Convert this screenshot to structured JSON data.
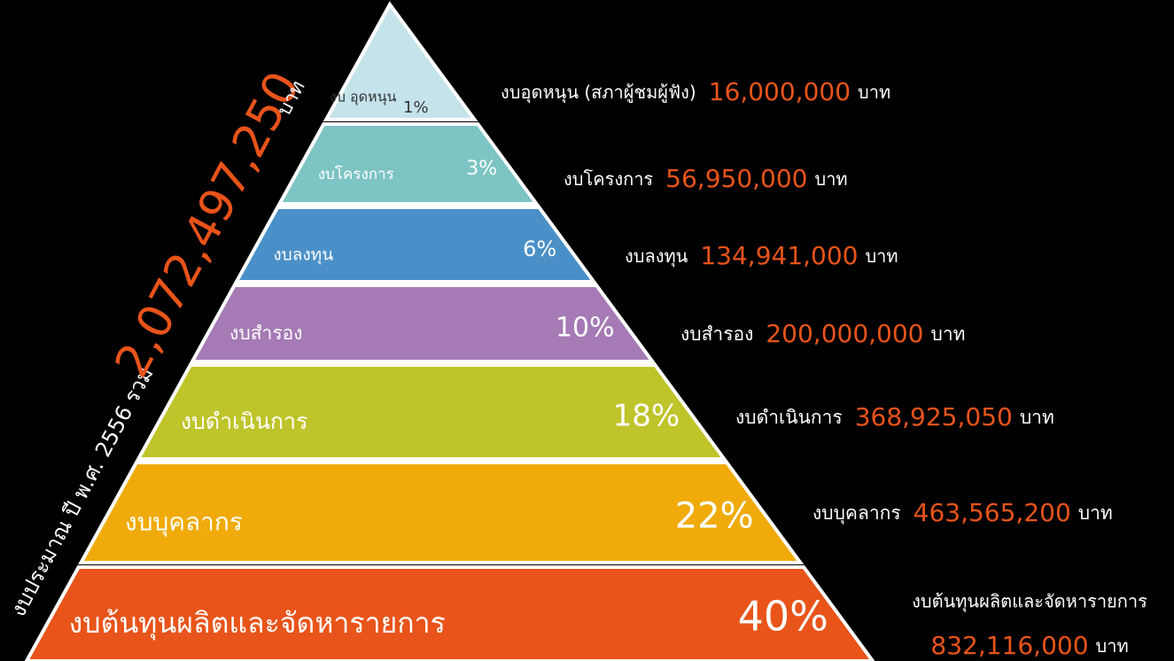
{
  "title": {
    "prefix": "งบประมาณ ปี พ.ศ. 2556 รวม",
    "total": "2,072,497,250",
    "unit": "บาท"
  },
  "layers": [
    {
      "name": "งบ อุดหนุน",
      "percent": "1%",
      "label": "งบอุดหนุน (สภาผู้ชมผู้ฟัง)",
      "amount": "16,000,000",
      "unit": "บาท"
    },
    {
      "name": "งบโครงการ",
      "percent": "3%",
      "label": "งบโครงการ",
      "amount": "56,950,000",
      "unit": "บาท"
    },
    {
      "name": "งบลงทุน",
      "percent": "6%",
      "label": "งบลงทุน",
      "amount": "134,941,000",
      "unit": "บาท"
    },
    {
      "name": "งบสำรอง",
      "percent": "10%",
      "label": "งบสำรอง",
      "amount": "200,000,000",
      "unit": "บาท"
    },
    {
      "name": "งบดำเนินการ",
      "percent": "18%",
      "label": "งบดำเนินการ",
      "amount": "368,925,050",
      "unit": "บาท"
    },
    {
      "name": "งบบุคลากร",
      "percent": "22%",
      "label": "งบบุคลากร",
      "amount": "463,565,200",
      "unit": "บาท"
    },
    {
      "name": "งบต้นทุนผลิตและจัดหารายการ",
      "percent": "40%",
      "label": "งบต้นทุนผลิตและจัดหารายการ",
      "amount": "832,116,000",
      "unit": "บาท"
    }
  ]
}
